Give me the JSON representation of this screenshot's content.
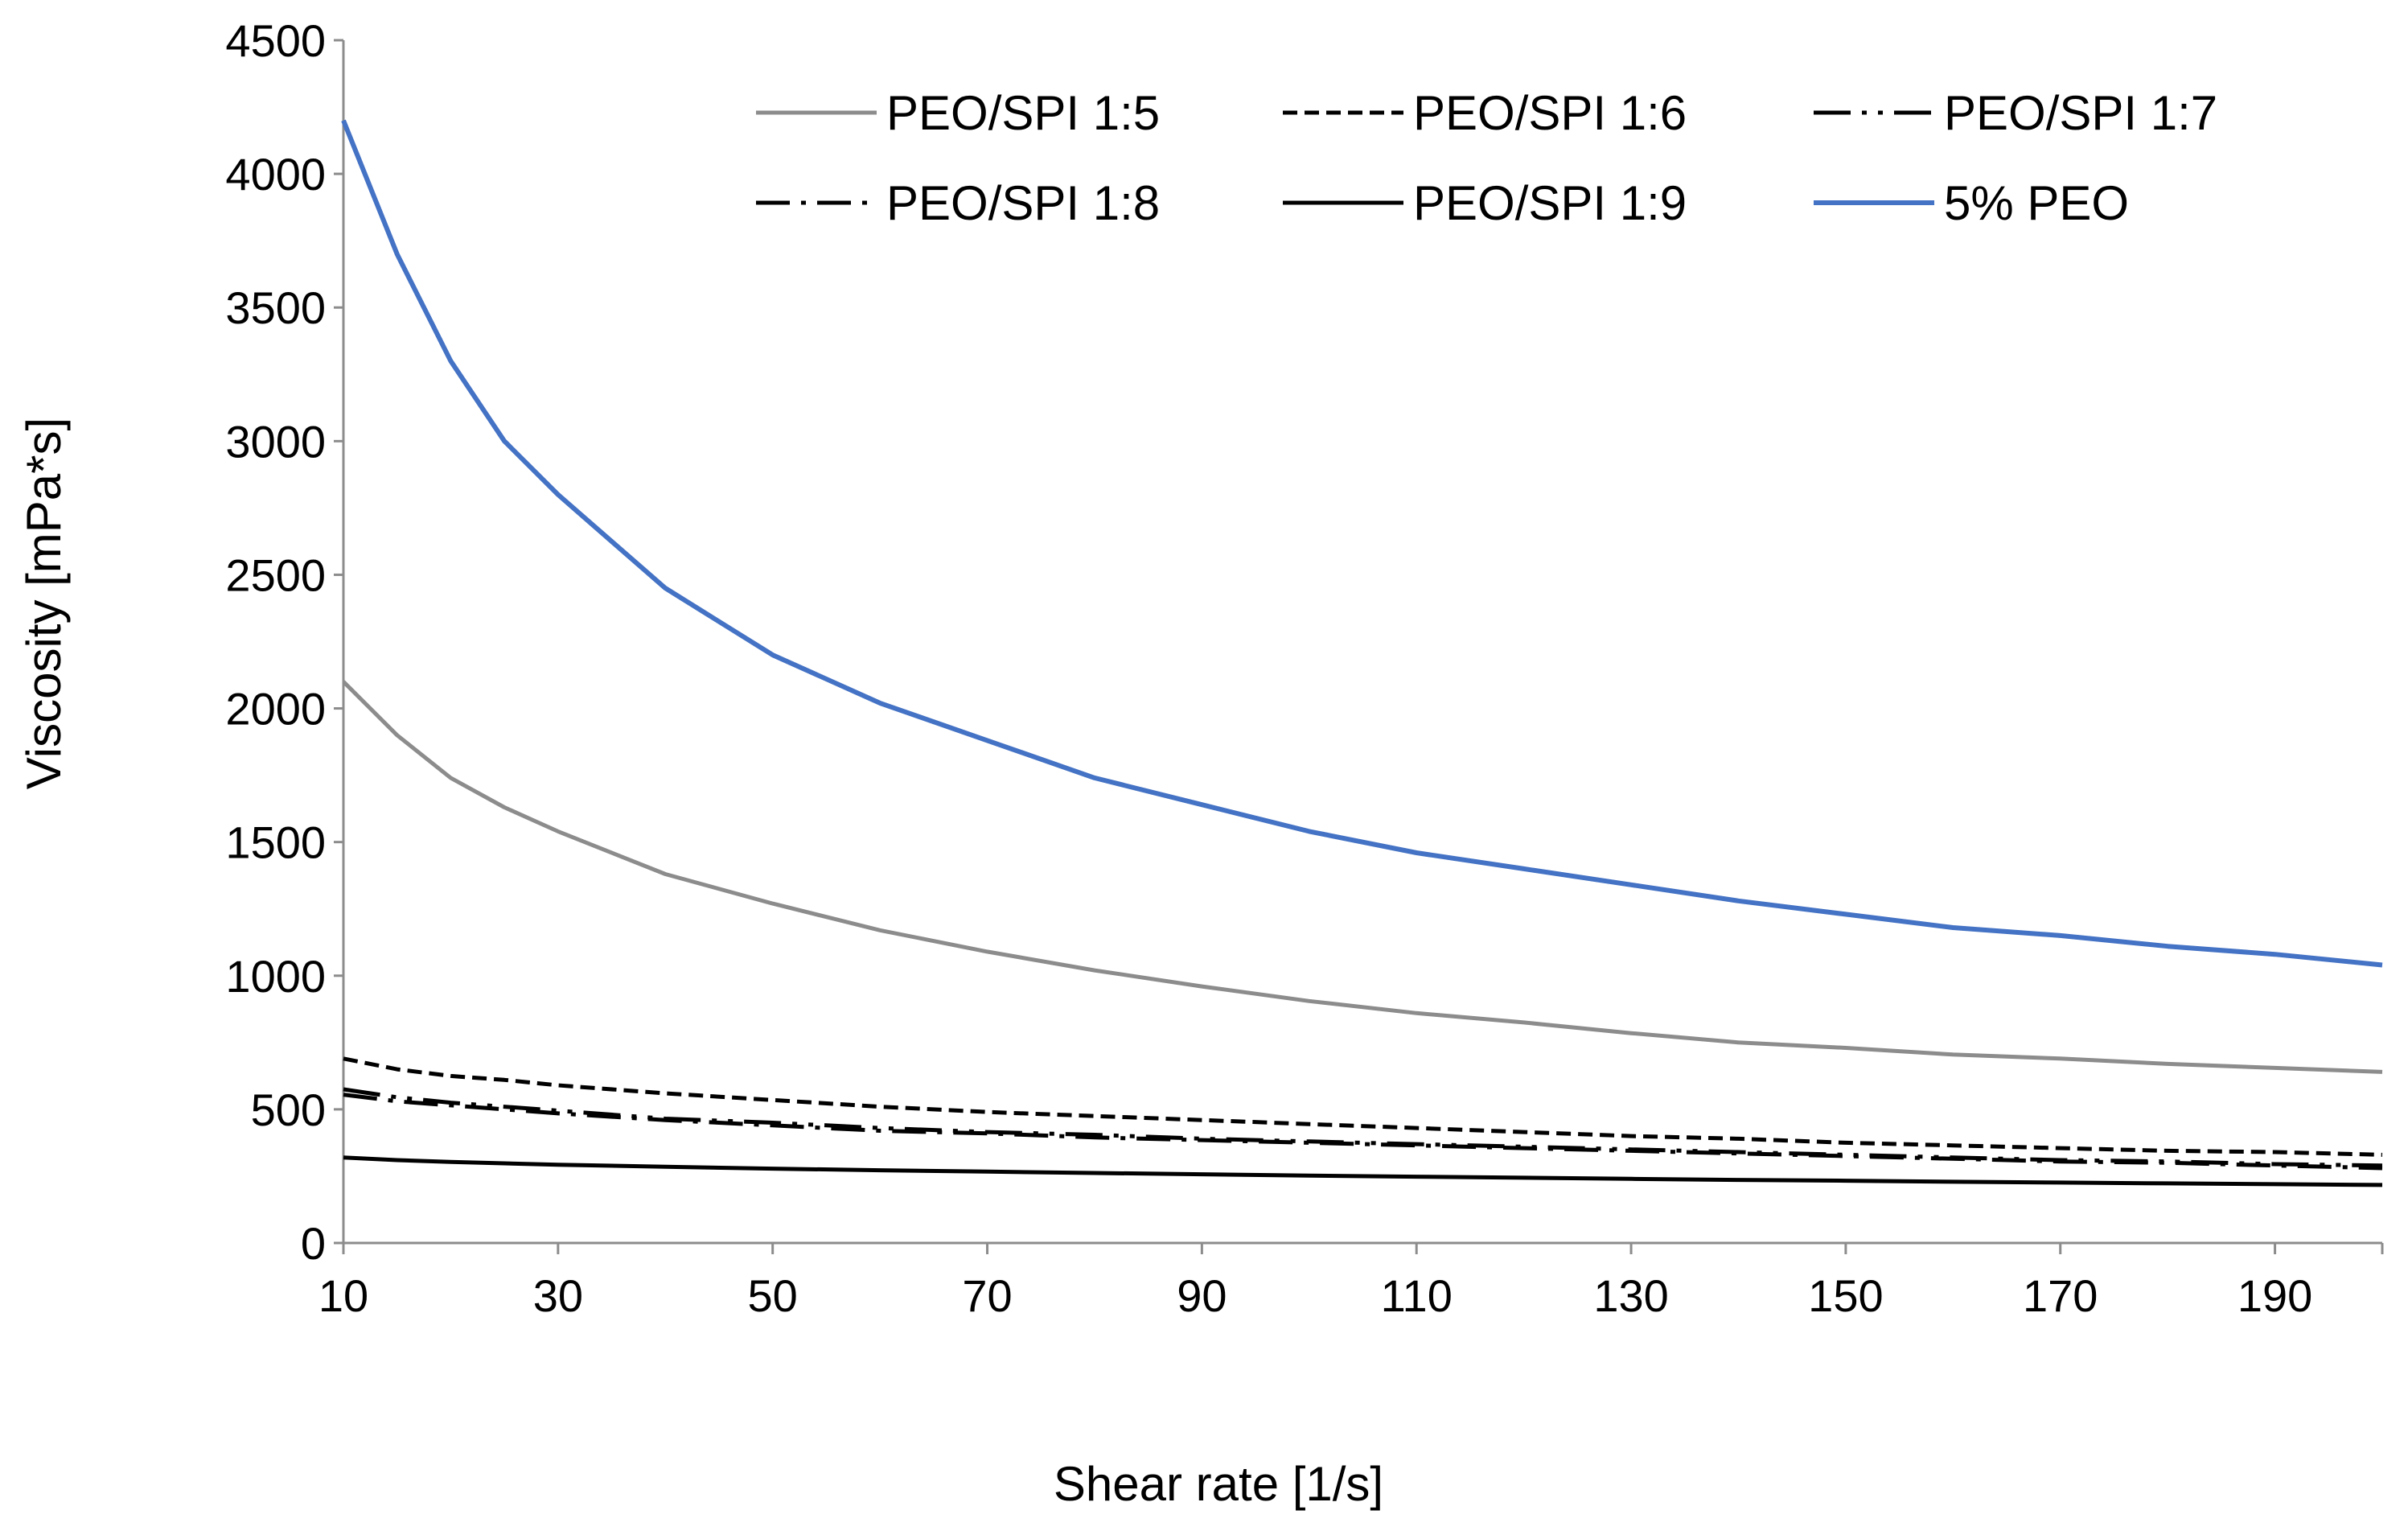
{
  "chart_data": {
    "type": "line",
    "title": "",
    "xlabel": "Shear rate [1/s]",
    "ylabel": "Viscosity [mPa*s]",
    "xlim": [
      10,
      200
    ],
    "ylim": [
      0,
      4500
    ],
    "x_ticks": [
      10,
      30,
      50,
      70,
      90,
      110,
      130,
      150,
      170,
      190
    ],
    "y_ticks": [
      0,
      500,
      1000,
      1500,
      2000,
      2500,
      3000,
      3500,
      4000,
      4500
    ],
    "x_tick_labels": [
      "10",
      "30",
      "50",
      "70",
      "90",
      "110",
      "130",
      "150",
      "170",
      "190"
    ],
    "y_tick_labels": [
      "0",
      "500",
      "1000",
      "1500",
      "2000",
      "2500",
      "3000",
      "3500",
      "4000",
      "4500"
    ],
    "grid": false,
    "legend_position": "top",
    "x": [
      10,
      15,
      20,
      25,
      30,
      40,
      50,
      60,
      70,
      80,
      90,
      100,
      110,
      120,
      130,
      140,
      150,
      160,
      170,
      180,
      190,
      200
    ],
    "series": [
      {
        "name": "PEO/SPI 1:5",
        "color": "#8c8c8c",
        "dash": "solid",
        "values": [
          2100,
          1900,
          1740,
          1630,
          1540,
          1380,
          1270,
          1170,
          1090,
          1020,
          960,
          905,
          860,
          825,
          785,
          750,
          730,
          705,
          690,
          670,
          655,
          640
        ]
      },
      {
        "name": "PEO/SPI 1:6",
        "color": "#000000",
        "dash": "dashed",
        "values": [
          690,
          650,
          625,
          610,
          590,
          560,
          535,
          510,
          490,
          475,
          460,
          445,
          430,
          415,
          400,
          390,
          375,
          365,
          355,
          345,
          340,
          330
        ]
      },
      {
        "name": "PEO/SPI 1:7",
        "color": "#000000",
        "dash": "longdashdotdot",
        "values": [
          575,
          545,
          525,
          510,
          495,
          465,
          450,
          430,
          415,
          405,
          390,
          380,
          370,
          360,
          350,
          340,
          330,
          320,
          310,
          305,
          295,
          290
        ]
      },
      {
        "name": "PEO/SPI 1:8",
        "color": "#000000",
        "dash": "dashdot",
        "values": [
          555,
          530,
          515,
          500,
          485,
          460,
          440,
          420,
          410,
          395,
          385,
          375,
          365,
          355,
          345,
          335,
          325,
          315,
          305,
          300,
          290,
          280
        ]
      },
      {
        "name": "PEO/SPI 1:9",
        "color": "#000000",
        "dash": "solid",
        "values": [
          320,
          310,
          303,
          298,
          293,
          285,
          278,
          272,
          267,
          262,
          257,
          252,
          248,
          244,
          240,
          236,
          233,
          229,
          226,
          223,
          220,
          217
        ]
      },
      {
        "name": "5% PEO",
        "color": "#4472c4",
        "dash": "solid",
        "values": [
          4200,
          3700,
          3300,
          3000,
          2800,
          2450,
          2200,
          2020,
          1880,
          1740,
          1640,
          1540,
          1460,
          1400,
          1340,
          1280,
          1230,
          1180,
          1150,
          1110,
          1080,
          1040
        ]
      }
    ]
  }
}
